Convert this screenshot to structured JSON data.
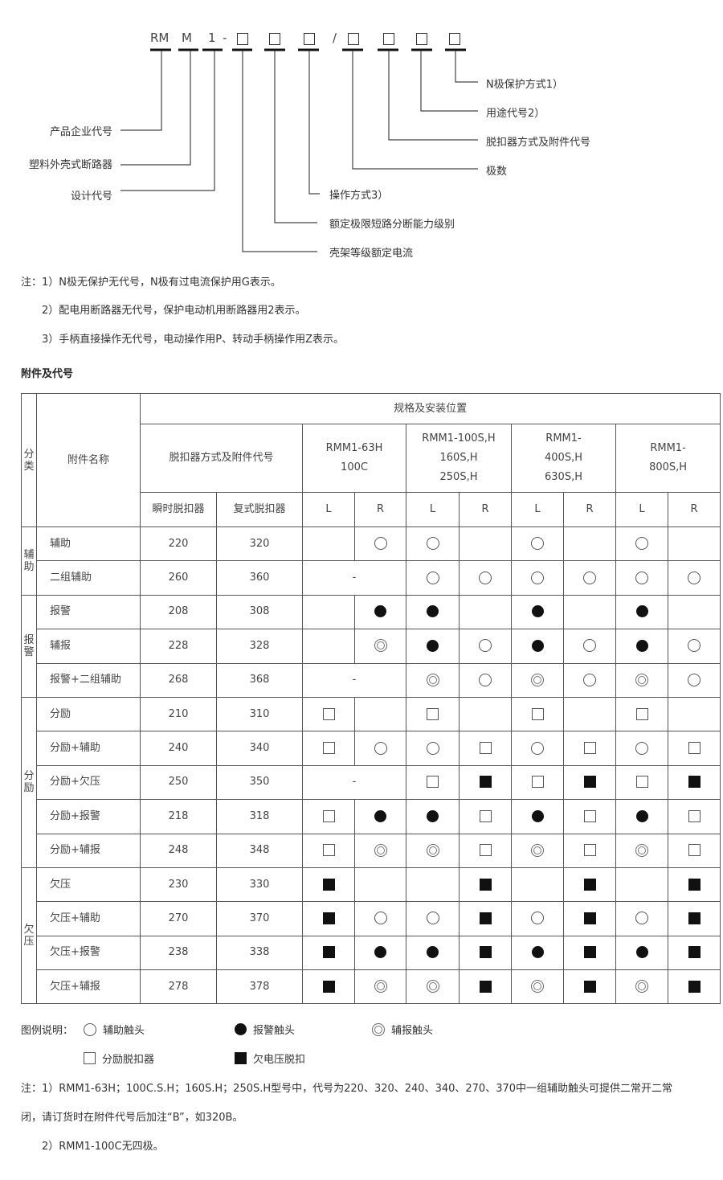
{
  "model_code": {
    "parts": [
      "RM",
      "M",
      "1",
      "-",
      "/"
    ]
  },
  "diagram_labels": {
    "left": [
      "产品企业代号",
      "塑料外壳式断路器",
      "设计代号"
    ],
    "right_upper": [
      "N极保护方式1）",
      "用途代号2）",
      "脱扣器方式及附件代号",
      "极数"
    ],
    "right_lower": [
      "操作方式3）",
      "额定极限短路分断能力级别",
      "壳架等级额定电流"
    ]
  },
  "notes_top": [
    "注：1）N极无保护无代号，N极有过电流保护用G表示。",
    "2）配电用断路器无代号，保护电动机用断路器用2表示。",
    "3）手柄直接操作无代号，电动操作用P、转动手柄操作用Z表示。"
  ],
  "section_title": "附件及代号",
  "table": {
    "h_category": "分类",
    "h_name": "附件名称",
    "h_spec": "规格及安装位置",
    "h_code": "脱扣器方式及附件代号",
    "h_instant": "瞬时脱扣器",
    "h_compound": "复式脱扣器",
    "models": [
      "RMM1-63H\n100C",
      "RMM1-100S,H\n160S,H\n250S,H",
      "RMM1-\n400S,H\n630S,H",
      "RMM1-\n800S,H"
    ],
    "lr": [
      "L",
      "R"
    ],
    "groups": [
      {
        "category": "辅助",
        "rows": [
          {
            "name": "辅助",
            "instant": "220",
            "compound": "320",
            "cells": [
              "",
              "O",
              "O",
              "",
              "O",
              "",
              "O",
              ""
            ]
          },
          {
            "name": "二组辅助",
            "instant": "260",
            "compound": "360",
            "cells": [
              "-",
              "O",
              "O",
              "O",
              "O",
              "O",
              "O"
            ]
          }
        ]
      },
      {
        "category": "报警",
        "rows": [
          {
            "name": "报警",
            "instant": "208",
            "compound": "308",
            "cells": [
              "",
              "B",
              "B",
              "",
              "B",
              "",
              "B",
              ""
            ]
          },
          {
            "name": "辅报",
            "instant": "228",
            "compound": "328",
            "cells": [
              "",
              "D",
              "B",
              "O",
              "B",
              "O",
              "B",
              "O"
            ]
          },
          {
            "name": "报警+二组辅助",
            "instant": "268",
            "compound": "368",
            "cells": [
              "-",
              "D",
              "O",
              "D",
              "O",
              "D",
              "O"
            ]
          }
        ]
      },
      {
        "category": "分励",
        "rows": [
          {
            "name": "分励",
            "instant": "210",
            "compound": "310",
            "cells": [
              "S",
              "",
              "S",
              "",
              "S",
              "",
              "S",
              ""
            ]
          },
          {
            "name": "分励+辅助",
            "instant": "240",
            "compound": "340",
            "cells": [
              "S",
              "O",
              "O",
              "S",
              "O",
              "S",
              "O",
              "S"
            ]
          },
          {
            "name": "分励+欠压",
            "instant": "250",
            "compound": "350",
            "cells": [
              "-",
              "S",
              "F",
              "S",
              "F",
              "S",
              "F"
            ]
          },
          {
            "name": "分励+报警",
            "instant": "218",
            "compound": "318",
            "cells": [
              "S",
              "B",
              "B",
              "S",
              "B",
              "S",
              "B",
              "S"
            ]
          },
          {
            "name": "分励+辅报",
            "instant": "248",
            "compound": "348",
            "cells": [
              "S",
              "D",
              "D",
              "S",
              "D",
              "S",
              "D",
              "S"
            ]
          }
        ]
      },
      {
        "category": "欠压",
        "rows": [
          {
            "name": "欠压",
            "instant": "230",
            "compound": "330",
            "cells": [
              "F",
              "",
              "",
              "F",
              "",
              "F",
              "",
              "F"
            ]
          },
          {
            "name": "欠压+辅助",
            "instant": "270",
            "compound": "370",
            "cells": [
              "F",
              "O",
              "O",
              "F",
              "O",
              "F",
              "O",
              "F"
            ]
          },
          {
            "name": "欠压+报警",
            "instant": "238",
            "compound": "338",
            "cells": [
              "F",
              "B",
              "B",
              "F",
              "B",
              "F",
              "B",
              "F"
            ]
          },
          {
            "name": "欠压+辅报",
            "instant": "278",
            "compound": "378",
            "cells": [
              "F",
              "D",
              "D",
              "F",
              "D",
              "F",
              "D",
              "F"
            ]
          }
        ]
      }
    ]
  },
  "legend": {
    "title": "图例说明：",
    "items": [
      {
        "symbol": "O",
        "icon": "hollow-circle-icon",
        "label": "辅助触头"
      },
      {
        "symbol": "B",
        "icon": "filled-circle-icon",
        "label": "报警触头"
      },
      {
        "symbol": "D",
        "icon": "double-circle-icon",
        "label": "辅报触头"
      },
      {
        "symbol": "S",
        "icon": "hollow-square-icon",
        "label": "分励脱扣器"
      },
      {
        "symbol": "F",
        "icon": "filled-square-icon",
        "label": "欠电压脱扣"
      }
    ]
  },
  "notes_bottom": [
    "注：1）RMM1-63H；100C.S.H；160S.H；250S.H型号中，代号为220、320、240、340、270、370中一组辅助触头可提供二常开二常",
    "闭，请订货时在附件代号后加注“B”，如320B。",
    "2）RMM1-100C无四极。"
  ]
}
